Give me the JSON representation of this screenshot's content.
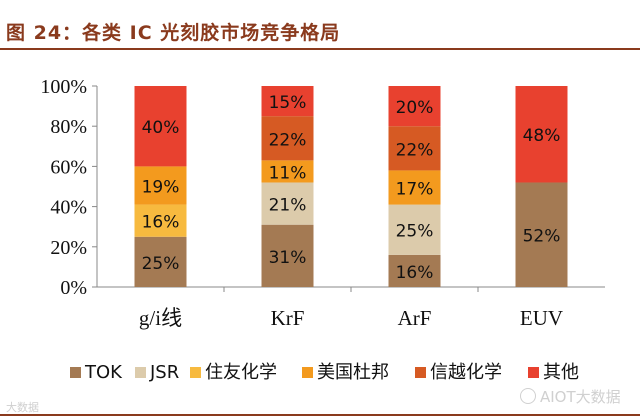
{
  "figure": {
    "title": "图 24：各类 IC 光刻胶市场竞争格局"
  },
  "watermarks": {
    "left": "大数据",
    "right": "AIOT大数据"
  },
  "chart_data": {
    "type": "bar",
    "stacked": true,
    "title": "",
    "xlabel": "",
    "ylabel": "",
    "ylim": [
      0,
      100
    ],
    "yticks": [
      "0%",
      "20%",
      "40%",
      "60%",
      "80%",
      "100%"
    ],
    "categories": [
      "g/i线",
      "KrF",
      "ArF",
      "EUV"
    ],
    "series": [
      {
        "name": "TOK",
        "color": "#a47a53",
        "values": [
          25,
          31,
          16,
          52
        ],
        "labels": [
          "25%",
          "31%",
          "16%",
          "52%"
        ]
      },
      {
        "name": "JSR",
        "color": "#dccbab",
        "values": [
          0,
          21,
          25,
          0
        ],
        "labels": [
          "",
          "21%",
          "25%",
          ""
        ]
      },
      {
        "name": "住友化学",
        "color": "#f7ba3f",
        "values": [
          16,
          0,
          0,
          0
        ],
        "labels": [
          "16%",
          "",
          "",
          ""
        ]
      },
      {
        "name": "美国杜邦",
        "color": "#f39a1e",
        "values": [
          19,
          11,
          17,
          0
        ],
        "labels": [
          "19%",
          "11%",
          "17%",
          ""
        ]
      },
      {
        "name": "信越化学",
        "color": "#d65a23",
        "values": [
          0,
          22,
          22,
          0
        ],
        "labels": [
          "",
          "22%",
          "22%",
          ""
        ]
      },
      {
        "name": "其他",
        "color": "#e8412f",
        "values": [
          40,
          15,
          20,
          48
        ],
        "labels": [
          "40%",
          "15%",
          "20%",
          "48%"
        ]
      }
    ],
    "legend_position": "bottom"
  }
}
